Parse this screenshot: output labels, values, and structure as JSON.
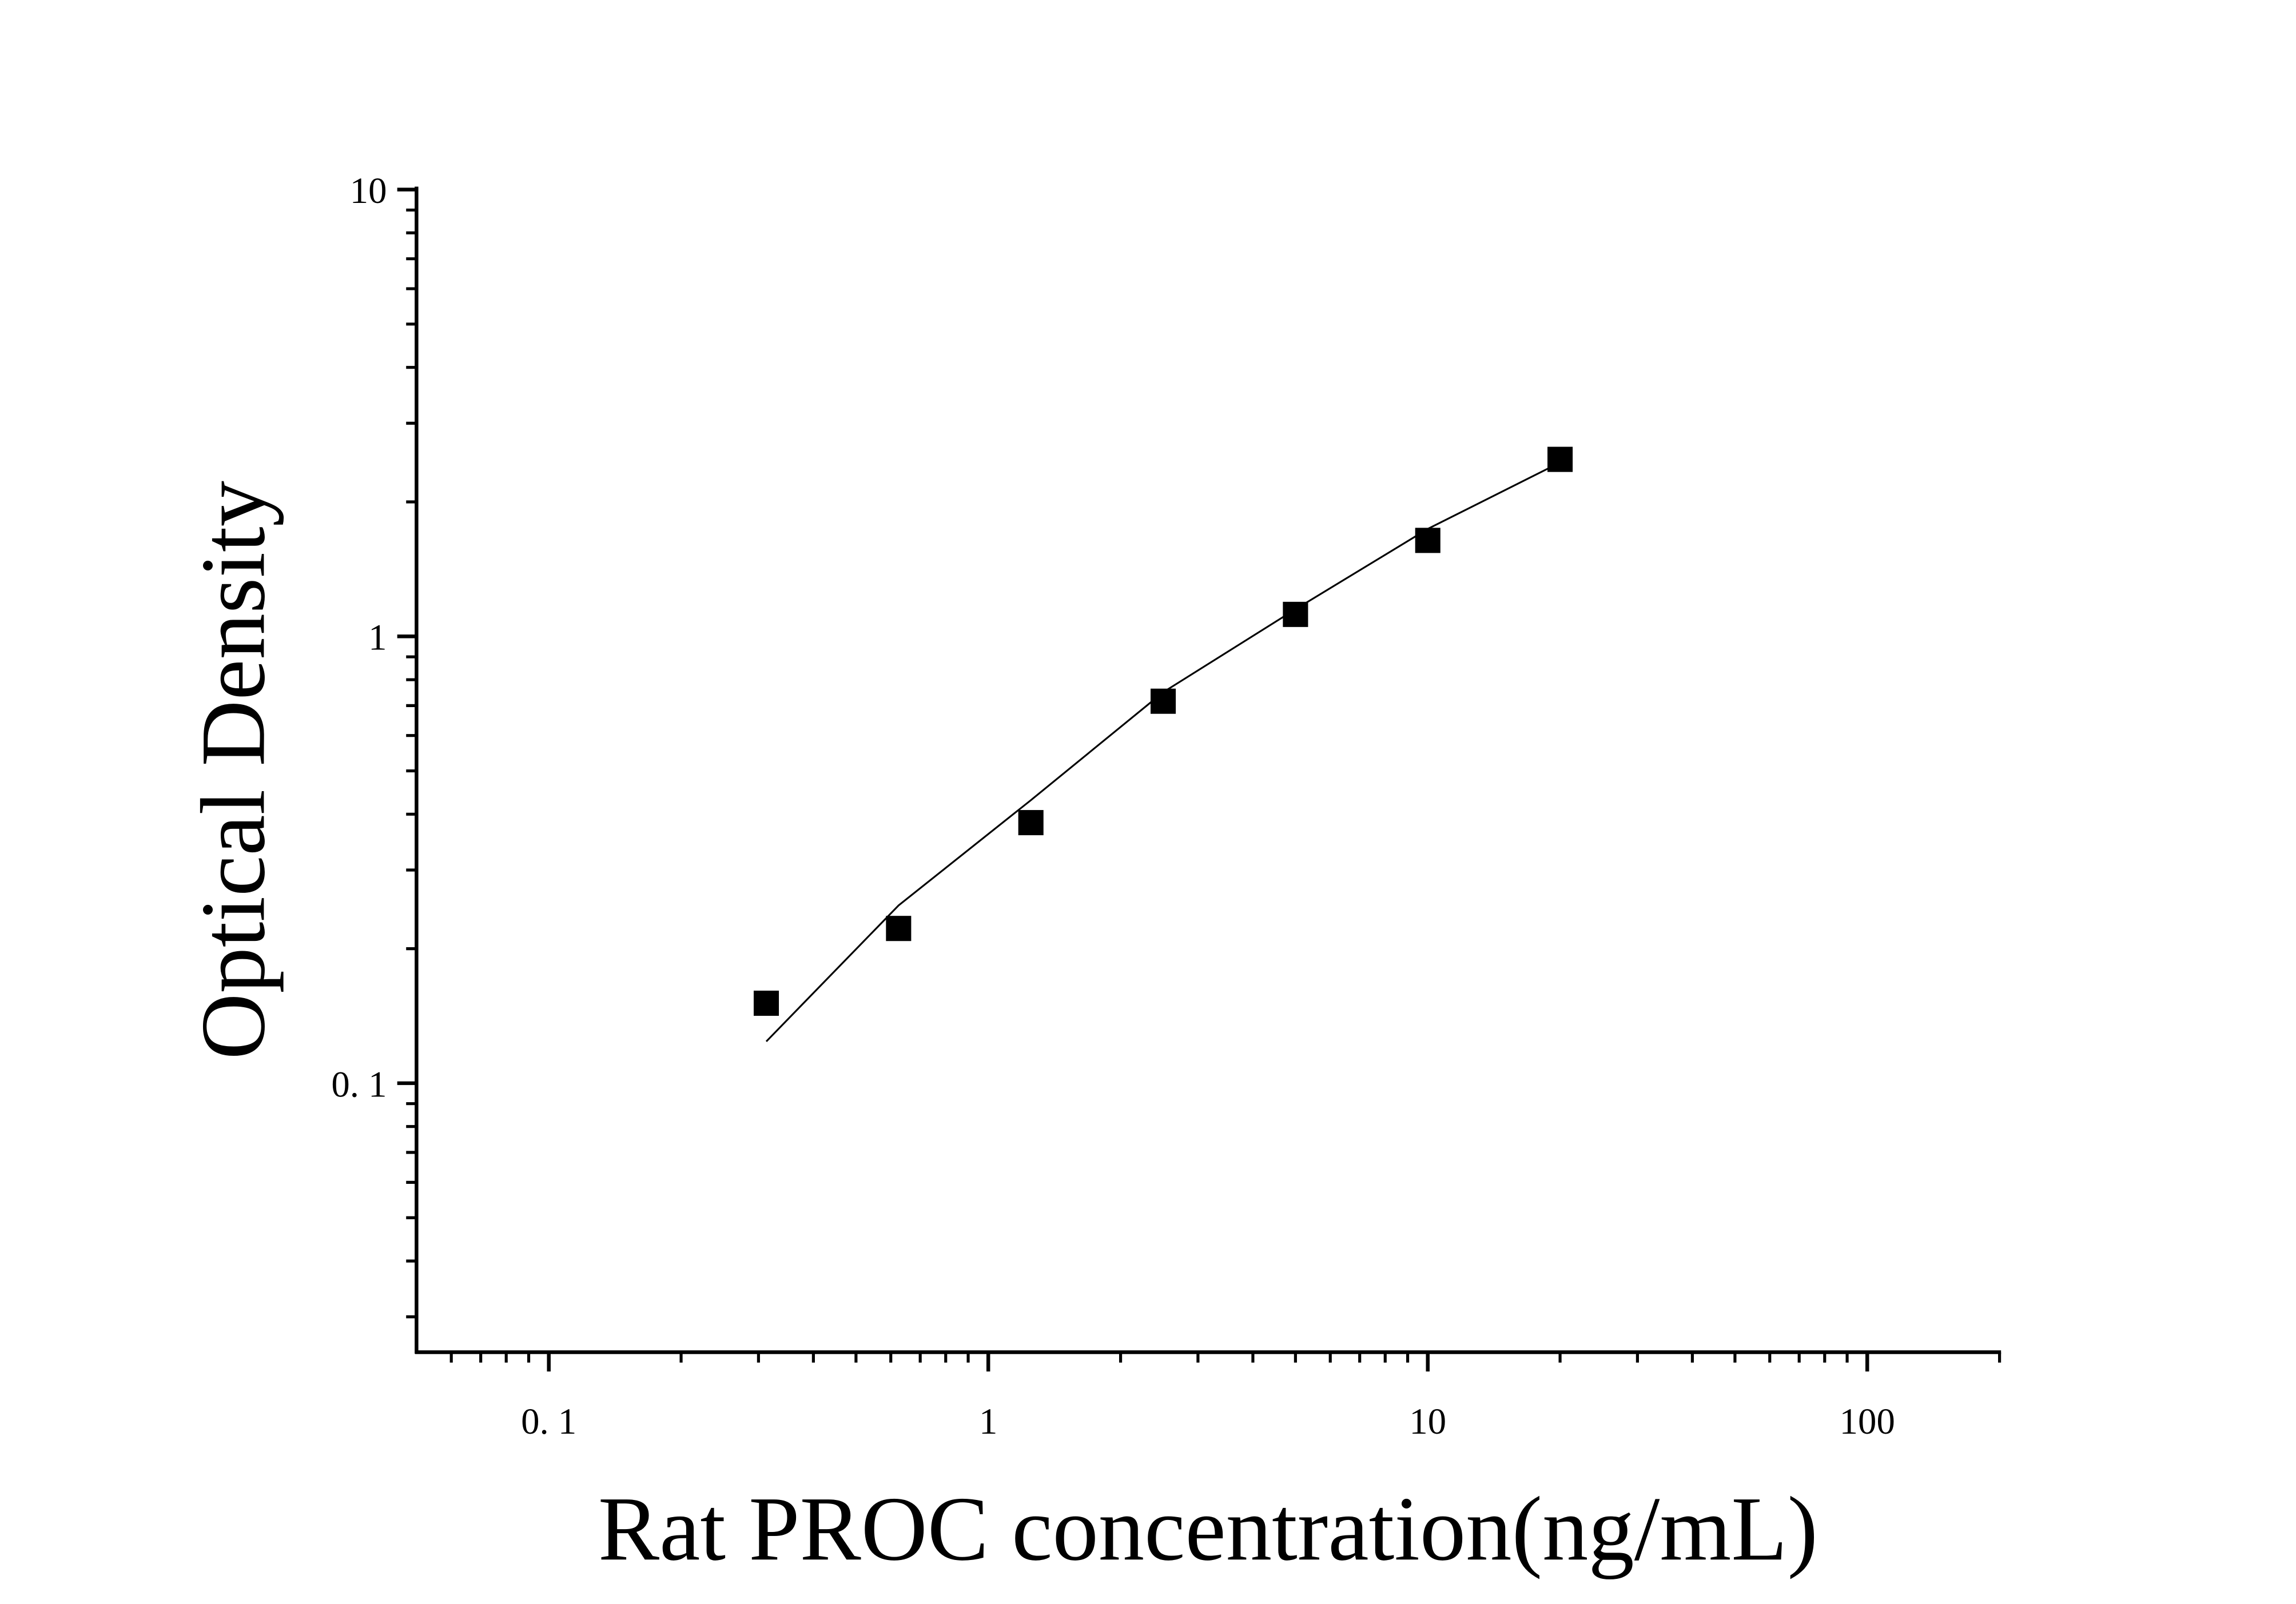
{
  "chart_data": {
    "type": "scatter",
    "x_label": "Rat PROC concentration(ng/mL)",
    "y_label": "Optical Density",
    "x_log": true,
    "y_log": true,
    "xlim": [
      0.05,
      200
    ],
    "ylim": [
      0.025,
      10
    ],
    "xticks": [
      {
        "value": 0.1,
        "label": "0. 1"
      },
      1,
      10,
      100
    ],
    "yticks": [
      {
        "value": 0.1,
        "label": "0. 1"
      },
      1,
      10
    ],
    "xminorticks": [
      0.06,
      0.07,
      0.08,
      0.09,
      0.2,
      0.3,
      0.4,
      0.5,
      0.6,
      0.7,
      0.8,
      0.9,
      2,
      3,
      4,
      5,
      6,
      7,
      8,
      9,
      20,
      30,
      40,
      50,
      60,
      70,
      80,
      90,
      200
    ],
    "yminorticks": [
      0.03,
      0.04,
      0.05,
      0.06,
      0.07,
      0.08,
      0.09,
      0.2,
      0.3,
      0.4,
      0.5,
      0.6,
      0.7,
      0.8,
      0.9,
      2,
      3,
      4,
      5,
      6,
      7,
      8,
      9
    ],
    "x": [
      0.3125,
      0.625,
      1.25,
      2.5,
      5,
      10,
      20
    ],
    "series": [
      {
        "style": "markers",
        "color": "#000000",
        "values": [
          0.151,
          0.222,
          0.383,
          0.716,
          1.12,
          1.64,
          2.49
        ]
      },
      {
        "style": "line",
        "color": "#000000",
        "values": [
          0.124,
          0.25,
          0.43,
          0.75,
          1.15,
          1.74,
          2.45
        ]
      }
    ]
  }
}
